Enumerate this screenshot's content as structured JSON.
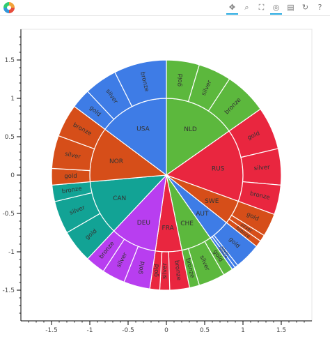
{
  "toolbar": {
    "tools": [
      {
        "name": "pan-tool",
        "icon": "✥",
        "active": true
      },
      {
        "name": "box-zoom-tool",
        "icon": "⌕",
        "active": false
      },
      {
        "name": "wheel-zoom-tool",
        "icon": "⛶",
        "active": false
      },
      {
        "name": "tap-tool",
        "icon": "◎",
        "active": true
      },
      {
        "name": "save-tool",
        "icon": "▤",
        "active": false
      },
      {
        "name": "reset-tool",
        "icon": "↻",
        "active": false
      },
      {
        "name": "help-tool",
        "icon": "?",
        "active": false
      }
    ]
  },
  "chart_data": {
    "type": "sunburst",
    "xlim": [
      -1.9,
      1.9
    ],
    "ylim": [
      -1.9,
      1.9
    ],
    "x_ticks": [
      -1.5,
      -1,
      -0.5,
      0,
      0.5,
      1,
      1.5
    ],
    "y_ticks": [
      1.5,
      1,
      0.5,
      0,
      -0.5,
      -1,
      -1.5
    ],
    "x_tick_labels": [
      "-1.5",
      "-1",
      "-0.5",
      "0",
      "0.5",
      "1",
      "1.5"
    ],
    "y_tick_labels": [
      "1.5",
      "1",
      "0.5",
      "0",
      "-0.5",
      "-1",
      "-1.5"
    ],
    "grid": false,
    "inner_radius": 1.0,
    "outer_radius": 1.5,
    "countries": [
      {
        "name": "NLD",
        "color": "#5cb83d",
        "medals": [
          {
            "medal": "gold",
            "value": 10
          },
          {
            "medal": "silver",
            "value": 10
          },
          {
            "medal": "bronze",
            "value": 13
          }
        ]
      },
      {
        "name": "RUS",
        "color": "#e9263f",
        "medals": [
          {
            "medal": "gold",
            "value": 13
          },
          {
            "medal": "silver",
            "value": 11
          },
          {
            "medal": "bronze",
            "value": 9
          }
        ]
      },
      {
        "name": "SWE",
        "color": "#d64e19",
        "medals": [
          {
            "medal": "gold",
            "value": 7
          },
          {
            "medal": "silver",
            "value": 2
          },
          {
            "medal": "bronze",
            "value": 2
          }
        ]
      },
      {
        "name": "AUT",
        "color": "#3e7ce6",
        "medals": [
          {
            "medal": "gold",
            "value": 8
          },
          {
            "medal": "silver",
            "value": 1
          },
          {
            "medal": "bronze",
            "value": 1
          }
        ]
      },
      {
        "name": "CHE",
        "color": "#5cb83d",
        "medals": [
          {
            "medal": "gold",
            "value": 3
          },
          {
            "medal": "silver",
            "value": 8
          },
          {
            "medal": "bronze",
            "value": 3
          }
        ]
      },
      {
        "name": "FRA",
        "color": "#e9263f",
        "medals": [
          {
            "medal": "bronze",
            "value": 6
          },
          {
            "medal": "silver",
            "value": 3
          },
          {
            "medal": "gold",
            "value": 3
          }
        ]
      },
      {
        "name": "DEU",
        "color": "#b83ef0",
        "medals": [
          {
            "medal": "gold",
            "value": 8
          },
          {
            "medal": "silver",
            "value": 7
          },
          {
            "medal": "bronze",
            "value": 6
          }
        ]
      },
      {
        "name": "CAN",
        "color": "#12a395",
        "medals": [
          {
            "medal": "gold",
            "value": 10
          },
          {
            "medal": "silver",
            "value": 10
          },
          {
            "medal": "bronze",
            "value": 5
          }
        ]
      },
      {
        "name": "NOR",
        "color": "#d64e19",
        "medals": [
          {
            "medal": "gold",
            "value": 5
          },
          {
            "medal": "silver",
            "value": 10
          },
          {
            "medal": "bronze",
            "value": 10
          }
        ]
      },
      {
        "name": "USA",
        "color": "#3e7ce6",
        "medals": [
          {
            "medal": "gold",
            "value": 6
          },
          {
            "medal": "silver",
            "value": 10
          },
          {
            "medal": "bronze",
            "value": 16
          }
        ]
      }
    ]
  }
}
